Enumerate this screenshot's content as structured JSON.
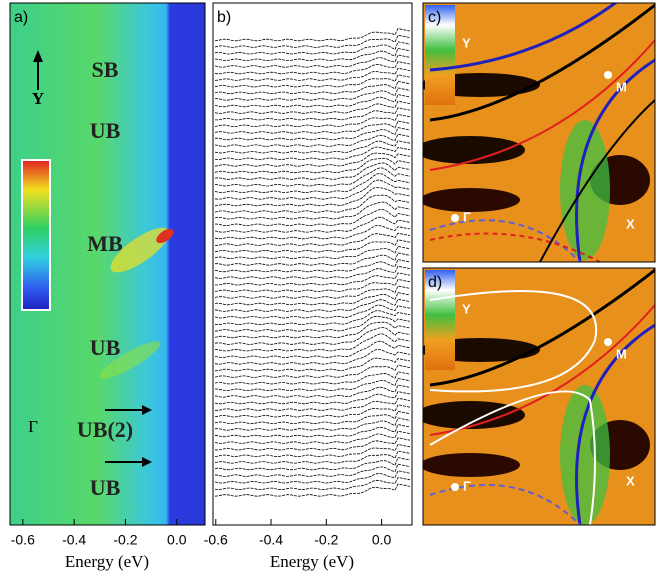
{
  "chart_data": [
    {
      "type": "heatmap",
      "label": "a)",
      "xlabel": "Energy (eV)",
      "xlim": [
        -0.65,
        0.11
      ],
      "xticks": [
        -0.6,
        -0.4,
        -0.2,
        {
          "value": 0,
          "label": "0.0"
        }
      ],
      "annotations": [
        "SB",
        "UB",
        "MB",
        "UB",
        "UB(2)",
        "UB"
      ],
      "axis_label": "Y",
      "point_label": "Γ"
    },
    {
      "type": "edc",
      "label": "b)",
      "xlabel": "Energy (eV)",
      "xlim": [
        -0.61,
        0.11
      ],
      "xticks": [
        -0.6,
        -0.4,
        -0.2,
        {
          "value": 0,
          "label": "0.0"
        }
      ]
    },
    {
      "type": "image",
      "label": "c)",
      "annotations": [
        "Y",
        "M",
        "Γ",
        "X"
      ]
    },
    {
      "type": "image",
      "label": "d)",
      "annotations": [
        "Y",
        "M",
        "Γ",
        "X"
      ]
    }
  ]
}
